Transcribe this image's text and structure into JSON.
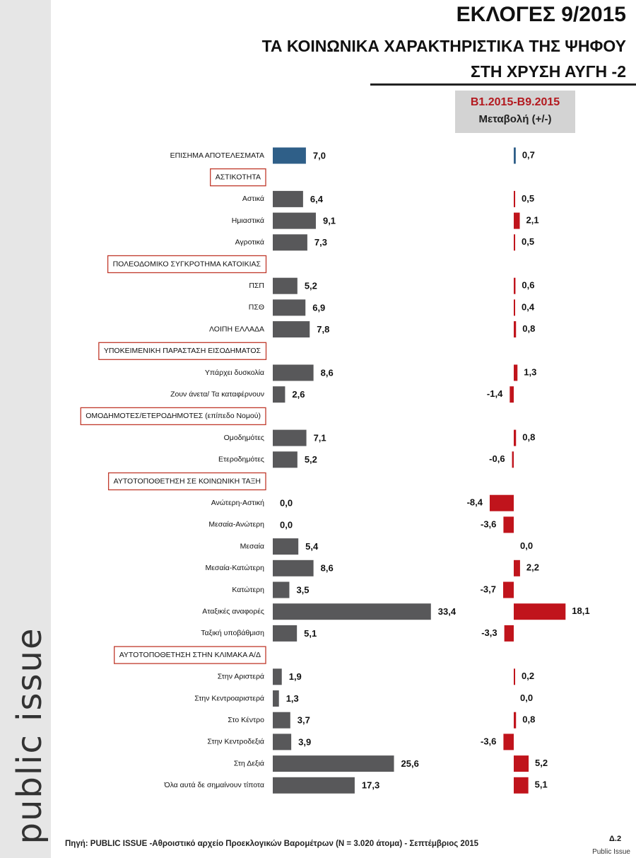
{
  "brand": "public issue",
  "title_lines": [
    "ΕΚΛΟΓΕΣ 9/2015",
    "ΤΑ ΚΟΙΝΩΝΙΚΑ ΧΑΡΑΚΤΗΡΙΣΤΙΚΑ ΤΗΣ ΨΗΦΟΥ",
    "ΣΤΗ ΧΡΥΣΗ ΑΥΓΗ -2"
  ],
  "change_header": {
    "period": "Β1.2015-Β9.2015",
    "label": "Μεταβολή (+/-)"
  },
  "source": "Πηγή:  PUBLIC ISSUE -Αθροιστικό αρχείο Προεκλογικών Βαρομέτρων (N = 3.020 άτομα)  - Σεπτέμβριος 2015",
  "page_number": "Δ.2",
  "credit": "Public Issue",
  "colors": {
    "bar": "#58585a",
    "official": "#2f5f88",
    "change": "#c0141c",
    "section_border": "#c0392b"
  },
  "chart_data": {
    "type": "bar",
    "orientation": "horizontal",
    "series": [
      {
        "name": "",
        "key": "value"
      },
      {
        "name": "Μεταβολή (+/-)",
        "key": "change"
      }
    ],
    "rows": [
      {
        "kind": "item",
        "label": "ΕΠΙΣΗΜΑ ΑΠΟΤΕΛΕΣΜΑΤΑ",
        "value": 7.0,
        "value_text": "7,0",
        "change": 0.7,
        "change_text": "0,7",
        "highlight": true
      },
      {
        "kind": "section",
        "label": "ΑΣΤΙΚΟΤΗΤΑ"
      },
      {
        "kind": "item",
        "label": "Αστικά",
        "value": 6.4,
        "value_text": "6,4",
        "change": 0.5,
        "change_text": "0,5"
      },
      {
        "kind": "item",
        "label": "Ημιαστικά",
        "value": 9.1,
        "value_text": "9,1",
        "change": 2.1,
        "change_text": "2,1"
      },
      {
        "kind": "item",
        "label": "Αγροτικά",
        "value": 7.3,
        "value_text": "7,3",
        "change": 0.5,
        "change_text": "0,5"
      },
      {
        "kind": "section",
        "label": "ΠΟΛΕΟΔΟΜΙΚΟ ΣΥΓΚΡΟΤΗΜΑ ΚΑΤΟΙΚΙΑΣ"
      },
      {
        "kind": "item",
        "label": "ΠΣΠ",
        "value": 5.2,
        "value_text": "5,2",
        "change": 0.6,
        "change_text": "0,6"
      },
      {
        "kind": "item",
        "label": "ΠΣΘ",
        "value": 6.9,
        "value_text": "6,9",
        "change": 0.4,
        "change_text": "0,4"
      },
      {
        "kind": "item",
        "label": "ΛΟΙΠΗ ΕΛΛΑΔΑ",
        "value": 7.8,
        "value_text": "7,8",
        "change": 0.8,
        "change_text": "0,8"
      },
      {
        "kind": "section",
        "label": "ΥΠΟΚΕΙΜΕΝΙΚΗ ΠΑΡΑΣΤΑΣΗ ΕΙΣΟΔΗΜΑΤΟΣ"
      },
      {
        "kind": "item",
        "label": "Υπάρχει δυσκολία",
        "value": 8.6,
        "value_text": "8,6",
        "change": 1.3,
        "change_text": "1,3"
      },
      {
        "kind": "item",
        "label": "Ζουν άνετα/ Τα καταφέρνουν",
        "value": 2.6,
        "value_text": "2,6",
        "change": -1.4,
        "change_text": "-1,4"
      },
      {
        "kind": "section",
        "label": "ΟΜΟΔΗΜΟΤΕΣ/ΕΤΕΡΟΔΗΜΟΤΕΣ (επίπεδο Νομού)"
      },
      {
        "kind": "item",
        "label": "Ομοδημότες",
        "value": 7.1,
        "value_text": "7,1",
        "change": 0.8,
        "change_text": "0,8"
      },
      {
        "kind": "item",
        "label": "Ετεροδημότες",
        "value": 5.2,
        "value_text": "5,2",
        "change": -0.6,
        "change_text": "-0,6"
      },
      {
        "kind": "section",
        "label": "ΑΥΤΟΤΟΠΟΘΕΤΗΣΗ ΣΕ ΚΟΙΝΩΝΙΚΗ ΤΑΞΗ"
      },
      {
        "kind": "item",
        "label": "Ανώτερη-Αστική",
        "value": 0.0,
        "value_text": "0,0",
        "change": -8.4,
        "change_text": "-8,4"
      },
      {
        "kind": "item",
        "label": "Μεσαία-Ανώτερη",
        "value": 0.0,
        "value_text": "0,0",
        "change": -3.6,
        "change_text": "-3,6"
      },
      {
        "kind": "item",
        "label": "Μεσαία",
        "value": 5.4,
        "value_text": "5,4",
        "change": 0.0,
        "change_text": "0,0"
      },
      {
        "kind": "item",
        "label": "Μεσαία-Κατώτερη",
        "value": 8.6,
        "value_text": "8,6",
        "change": 2.2,
        "change_text": "2,2"
      },
      {
        "kind": "item",
        "label": "Κατώτερη",
        "value": 3.5,
        "value_text": "3,5",
        "change": -3.7,
        "change_text": "-3,7"
      },
      {
        "kind": "item",
        "label": "Αταξικές αναφορές",
        "value": 33.4,
        "value_text": "33,4",
        "change": 18.1,
        "change_text": "18,1"
      },
      {
        "kind": "item",
        "label": "Ταξική υποβάθμιση",
        "value": 5.1,
        "value_text": "5,1",
        "change": -3.3,
        "change_text": "-3,3"
      },
      {
        "kind": "section",
        "label": "ΑΥΤΟΤΟΠΟΘΕΤΗΣΗ ΣΤΗΝ ΚΛΙΜΑΚΑ Α/Δ"
      },
      {
        "kind": "item",
        "label": "Στην Αριστερά",
        "value": 1.9,
        "value_text": "1,9",
        "change": 0.2,
        "change_text": "0,2"
      },
      {
        "kind": "item",
        "label": "Στην Κεντροαριστερά",
        "value": 1.3,
        "value_text": "1,3",
        "change": 0.0,
        "change_text": "0,0"
      },
      {
        "kind": "item",
        "label": "Στο Κέντρο",
        "value": 3.7,
        "value_text": "3,7",
        "change": 0.8,
        "change_text": "0,8"
      },
      {
        "kind": "item",
        "label": "Στην Κεντροδεξιά",
        "value": 3.9,
        "value_text": "3,9",
        "change": -3.6,
        "change_text": "-3,6"
      },
      {
        "kind": "item",
        "label": "Στη Δεξιά",
        "value": 25.6,
        "value_text": "25,6",
        "change": 5.2,
        "change_text": "5,2"
      },
      {
        "kind": "item",
        "label": "Όλα αυτά δε σημαίνουν τίποτα",
        "value": 17.3,
        "value_text": "17,3",
        "change": 5.1,
        "change_text": "5,1"
      }
    ]
  }
}
